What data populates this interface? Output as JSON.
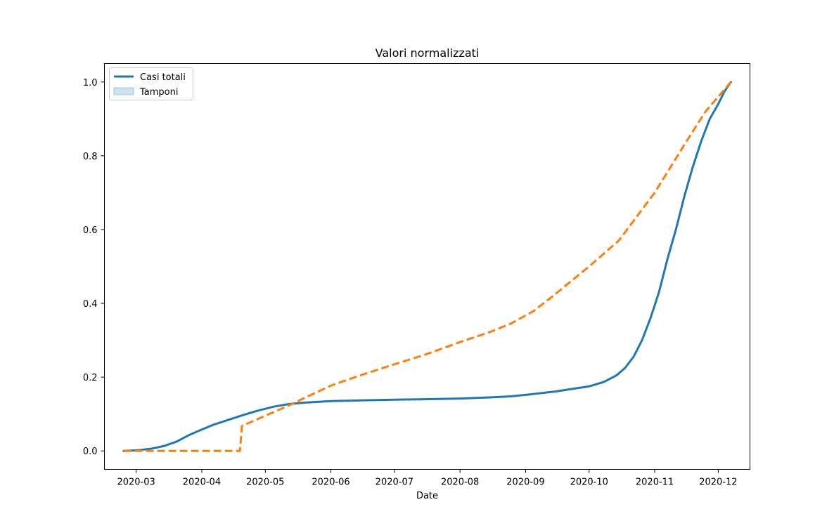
{
  "chart_data": {
    "type": "line",
    "title": "Valori normalizzati",
    "xlabel": "Date",
    "ylabel": "",
    "xlim": [
      "2020-02-15",
      "2020-12-16"
    ],
    "ylim": [
      -0.05,
      1.05
    ],
    "grid": false,
    "legend": "top-left",
    "x_ticks": [
      "2020-03-01",
      "2020-04-01",
      "2020-05-01",
      "2020-06-01",
      "2020-07-01",
      "2020-08-01",
      "2020-09-01",
      "2020-10-01",
      "2020-11-01",
      "2020-12-01"
    ],
    "x_tick_labels": [
      "2020-03",
      "2020-04",
      "2020-05",
      "2020-06",
      "2020-07",
      "2020-08",
      "2020-09",
      "2020-10",
      "2020-11",
      "2020-12"
    ],
    "y_ticks": [
      0.0,
      0.2,
      0.4,
      0.6,
      0.8,
      1.0
    ],
    "y_tick_labels": [
      "0.0",
      "0.2",
      "0.4",
      "0.6",
      "0.8",
      "1.0"
    ],
    "series": [
      {
        "name": "Casi totali",
        "color": "#1f77b4",
        "style": "solid",
        "points": [
          [
            "2020-02-24",
            0.0
          ],
          [
            "2020-03-02",
            0.002
          ],
          [
            "2020-03-08",
            0.006
          ],
          [
            "2020-03-14",
            0.013
          ],
          [
            "2020-03-20",
            0.025
          ],
          [
            "2020-03-26",
            0.043
          ],
          [
            "2020-04-01",
            0.058
          ],
          [
            "2020-04-07",
            0.072
          ],
          [
            "2020-04-14",
            0.085
          ],
          [
            "2020-04-21",
            0.098
          ],
          [
            "2020-04-28",
            0.11
          ],
          [
            "2020-05-05",
            0.12
          ],
          [
            "2020-05-12",
            0.127
          ],
          [
            "2020-05-20",
            0.131
          ],
          [
            "2020-06-01",
            0.135
          ],
          [
            "2020-06-15",
            0.137
          ],
          [
            "2020-07-01",
            0.139
          ],
          [
            "2020-07-15",
            0.14
          ],
          [
            "2020-08-01",
            0.142
          ],
          [
            "2020-08-15",
            0.145
          ],
          [
            "2020-08-25",
            0.148
          ],
          [
            "2020-09-01",
            0.152
          ],
          [
            "2020-09-15",
            0.161
          ],
          [
            "2020-10-01",
            0.175
          ],
          [
            "2020-10-08",
            0.187
          ],
          [
            "2020-10-14",
            0.205
          ],
          [
            "2020-10-18",
            0.225
          ],
          [
            "2020-10-22",
            0.255
          ],
          [
            "2020-10-26",
            0.3
          ],
          [
            "2020-10-30",
            0.36
          ],
          [
            "2020-11-03",
            0.43
          ],
          [
            "2020-11-07",
            0.52
          ],
          [
            "2020-11-11",
            0.6
          ],
          [
            "2020-11-15",
            0.69
          ],
          [
            "2020-11-19",
            0.77
          ],
          [
            "2020-11-23",
            0.84
          ],
          [
            "2020-11-27",
            0.9
          ],
          [
            "2020-12-01",
            0.94
          ],
          [
            "2020-12-04",
            0.975
          ],
          [
            "2020-12-07",
            1.0
          ]
        ]
      },
      {
        "name": "Tamponi",
        "color": "#ff7f0e",
        "style": "dashed",
        "points": [
          [
            "2020-02-24",
            0.0
          ],
          [
            "2020-04-19",
            0.0
          ],
          [
            "2020-04-20",
            0.068
          ],
          [
            "2020-04-27",
            0.085
          ],
          [
            "2020-05-04",
            0.103
          ],
          [
            "2020-05-11",
            0.12
          ],
          [
            "2020-05-20",
            0.145
          ],
          [
            "2020-06-01",
            0.177
          ],
          [
            "2020-06-15",
            0.205
          ],
          [
            "2020-07-01",
            0.235
          ],
          [
            "2020-07-15",
            0.26
          ],
          [
            "2020-08-01",
            0.295
          ],
          [
            "2020-08-15",
            0.322
          ],
          [
            "2020-08-25",
            0.345
          ],
          [
            "2020-09-05",
            0.38
          ],
          [
            "2020-09-15",
            0.425
          ],
          [
            "2020-10-01",
            0.5
          ],
          [
            "2020-10-15",
            0.57
          ],
          [
            "2020-11-01",
            0.7
          ],
          [
            "2020-11-15",
            0.83
          ],
          [
            "2020-11-25",
            0.92
          ],
          [
            "2020-12-07",
            1.0
          ]
        ]
      }
    ],
    "legend_entries": [
      {
        "label": "Casi totali",
        "kind": "line",
        "color": "#1f77b4"
      },
      {
        "label": "Tamponi",
        "kind": "patch",
        "color": "#a6c8e0"
      }
    ]
  }
}
